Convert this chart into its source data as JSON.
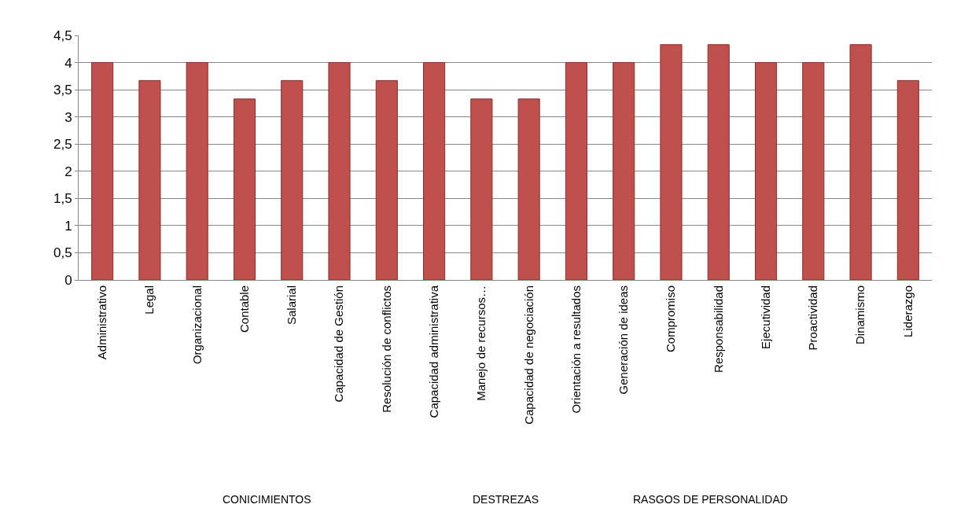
{
  "chart_data": {
    "type": "bar",
    "categories": [
      "Administrativo",
      "Legal",
      "Organizacional",
      "Contable",
      "Salarial",
      "Capacidad de Gestión",
      "Resolución de conflictos",
      "Capacidad administrativa",
      "Manejo de recursos…",
      "Capacidad de negociación",
      "Orientación a resultados",
      "Generación de ideas",
      "Compromiso",
      "Responsabilidad",
      "Ejecutividad",
      "Proactividad",
      "Dinamismo",
      "Liderazgo"
    ],
    "values": [
      4,
      3.67,
      4,
      3.33,
      3.67,
      4,
      3.67,
      4,
      3.33,
      3.33,
      4,
      4,
      4.33,
      4.33,
      4,
      4,
      4.33,
      3.67
    ],
    "color": "#c0504d",
    "ylim": [
      0,
      4.5
    ],
    "yticks": [
      0,
      {
        "value": 0.5,
        "label": "0,5"
      },
      1,
      {
        "value": 1.5,
        "label": "1,5"
      },
      2,
      {
        "value": 2.5,
        "label": "2,5"
      },
      3,
      {
        "value": 3.5,
        "label": "3,5"
      },
      4,
      {
        "value": 4.5,
        "label": "4,5"
      }
    ],
    "grid": "y",
    "annotations": [
      "CONICIMIENTOS",
      "DESTREZAS",
      "RASGOS DE PERSONALIDAD"
    ]
  }
}
